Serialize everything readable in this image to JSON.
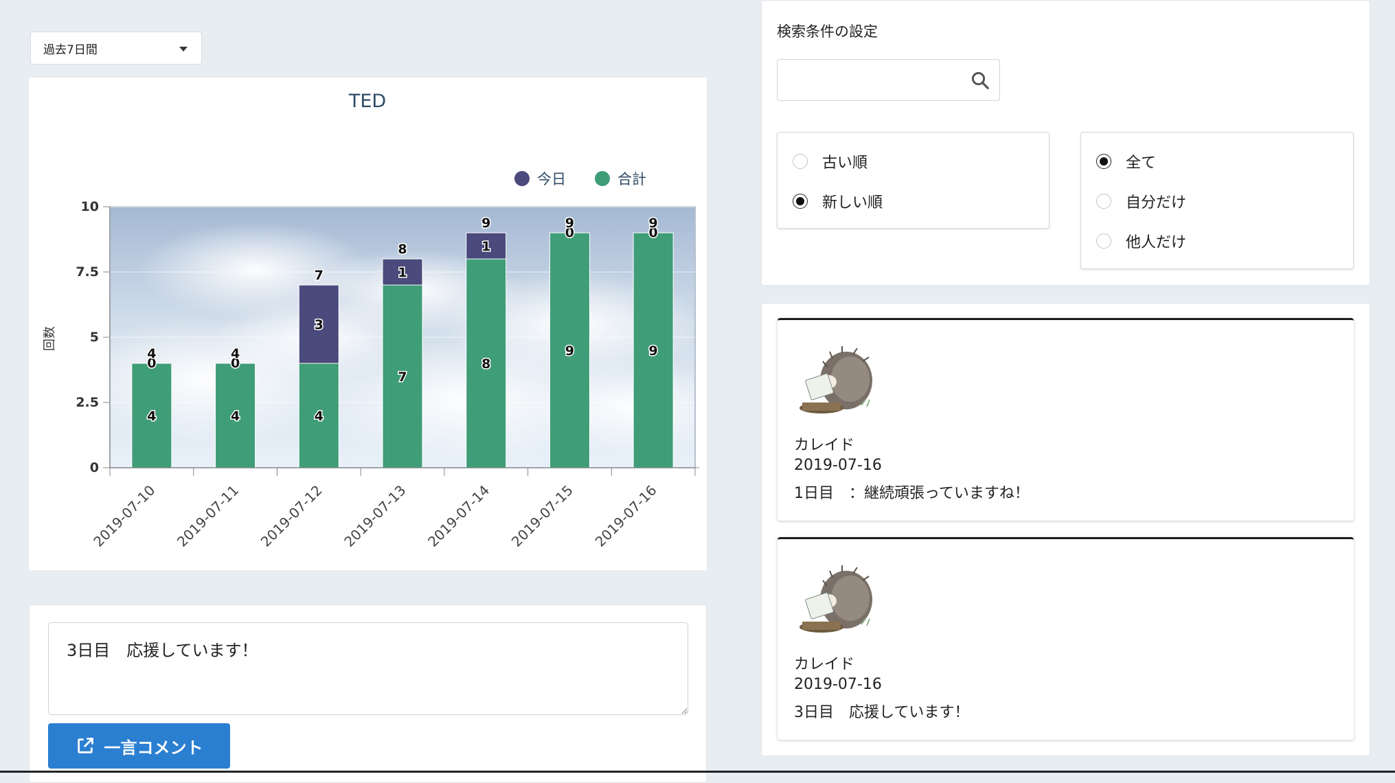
{
  "period_select": {
    "value": "過去7日間"
  },
  "chart_data": {
    "type": "bar",
    "stacked": true,
    "title": "TED",
    "ylabel": "回数",
    "xlabel": "",
    "ylim": [
      0,
      10
    ],
    "yticks": [
      "0",
      "2.5",
      "5",
      "7.5",
      "10"
    ],
    "categories": [
      "2019-07-10",
      "2019-07-11",
      "2019-07-12",
      "2019-07-13",
      "2019-07-14",
      "2019-07-15",
      "2019-07-16"
    ],
    "series": [
      {
        "name": "合計",
        "values": [
          4,
          4,
          4,
          7,
          8,
          9,
          9
        ],
        "color": "#3f9d77"
      },
      {
        "name": "今日",
        "values": [
          0,
          0,
          3,
          1,
          1,
          0,
          0
        ],
        "color": "#4a4a7c"
      }
    ],
    "totals": [
      4,
      4,
      7,
      8,
      9,
      9,
      9
    ],
    "legend": "top-right",
    "grid": true
  },
  "comment_form": {
    "text": "3日目　応援しています！",
    "button_label": "一言コメント"
  },
  "search": {
    "title": "検索条件の設定",
    "placeholder": "",
    "order_options": [
      "古い順",
      "新しい順"
    ],
    "order_selected": 1,
    "scope_options": [
      "全て",
      "自分だけ",
      "他人だけ"
    ],
    "scope_selected": 0
  },
  "comments": [
    {
      "name": "カレイド",
      "date": "2019-07-16",
      "body": "1日目　：継続頑張っていますね！"
    },
    {
      "name": "カレイド",
      "date": "2019-07-16",
      "body": "3日目　応援しています！"
    }
  ]
}
